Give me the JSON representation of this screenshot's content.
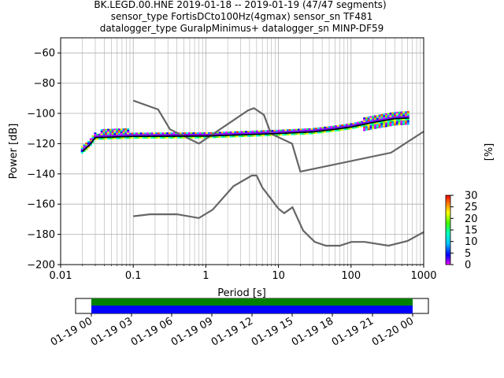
{
  "chart_data": {
    "type": "scatter",
    "title": [
      "BK.LEGD.00.HNE   2019-01-18 -- 2019-01-19  (47/47 segments)",
      "sensor_type FortisDCto100Hz(4gmax) sensor_sn TF481",
      "datalogger_type GuralpMinimus+ datalogger_sn MINP-DF59"
    ],
    "xlabel": "Period [s]",
    "ylabel": "Power [dB]",
    "xscale": "log",
    "xlim": [
      0.01,
      1000
    ],
    "ylim": [
      -200,
      -50
    ],
    "xticks": [
      {
        "value": 0.01,
        "label": "0.01"
      },
      {
        "value": 0.1,
        "label": "0.1"
      },
      {
        "value": 1,
        "label": "1"
      },
      {
        "value": 10,
        "label": "10"
      },
      {
        "value": 100,
        "label": "100"
      },
      {
        "value": 1000,
        "label": "1000"
      }
    ],
    "yticks": [
      {
        "value": -60,
        "label": "−60"
      },
      {
        "value": -80,
        "label": "−80"
      },
      {
        "value": -100,
        "label": "−100"
      },
      {
        "value": -120,
        "label": "−120"
      },
      {
        "value": -140,
        "label": "−140"
      },
      {
        "value": -160,
        "label": "−160"
      },
      {
        "value": -180,
        "label": "−180"
      },
      {
        "value": -200,
        "label": "−200"
      }
    ],
    "grid": true,
    "colorbar": {
      "label": "[%]",
      "range": [
        0,
        30
      ],
      "ticks": [
        {
          "value": 0,
          "label": "0"
        },
        {
          "value": 5,
          "label": "5"
        },
        {
          "value": 10,
          "label": "10"
        },
        {
          "value": 15,
          "label": "15"
        },
        {
          "value": 20,
          "label": "20"
        },
        {
          "value": 25,
          "label": "25"
        },
        {
          "value": 30,
          "label": "30"
        }
      ]
    },
    "noise_models": [
      {
        "points": [
          [
            0.1,
            -91.5
          ],
          [
            0.22,
            -97.4
          ],
          [
            0.32,
            -110.5
          ],
          [
            0.8,
            -120
          ],
          [
            3.8,
            -98
          ],
          [
            4.6,
            -96.5
          ],
          [
            6.3,
            -101
          ],
          [
            7.9,
            -113.5
          ],
          [
            15.4,
            -120
          ],
          [
            20,
            -138.5
          ],
          [
            354.8,
            -126
          ],
          [
            1000,
            -112
          ]
        ]
      },
      {
        "points": [
          [
            0.1,
            -168
          ],
          [
            0.17,
            -166.7
          ],
          [
            0.4,
            -166.7
          ],
          [
            0.8,
            -169.2
          ],
          [
            1.24,
            -163.7
          ],
          [
            2.4,
            -148.1
          ],
          [
            4.3,
            -141.1
          ],
          [
            5.0,
            -141.1
          ],
          [
            6.0,
            -149.0
          ],
          [
            10,
            -163
          ],
          [
            12,
            -166
          ],
          [
            15.6,
            -162.1
          ],
          [
            21.9,
            -177.5
          ],
          [
            31.6,
            -185
          ],
          [
            45,
            -187.5
          ],
          [
            70,
            -187.5
          ],
          [
            101,
            -185
          ],
          [
            154,
            -185
          ],
          [
            328,
            -187.5
          ],
          [
            600,
            -184.4
          ],
          [
            1000,
            -178.5
          ]
        ]
      }
    ],
    "mode_curve": {
      "points": [
        [
          0.02,
          -125
        ],
        [
          0.025,
          -121
        ],
        [
          0.03,
          -116
        ],
        [
          0.1,
          -115.2
        ],
        [
          1,
          -115
        ],
        [
          10,
          -113.3
        ],
        [
          30,
          -112.2
        ],
        [
          60,
          -110.5
        ],
        [
          100,
          -109
        ],
        [
          200,
          -106
        ],
        [
          400,
          -103.5
        ],
        [
          630,
          -103
        ]
      ]
    }
  },
  "timeline": {
    "ticks": [
      "01-19 00",
      "01-19 03",
      "01-19 06",
      "01-19 09",
      "01-19 12",
      "01-19 15",
      "01-19 18",
      "01-19 21",
      "01-20 00"
    ],
    "colors": {
      "coverage": "#008000",
      "data": "#0000ff"
    }
  }
}
